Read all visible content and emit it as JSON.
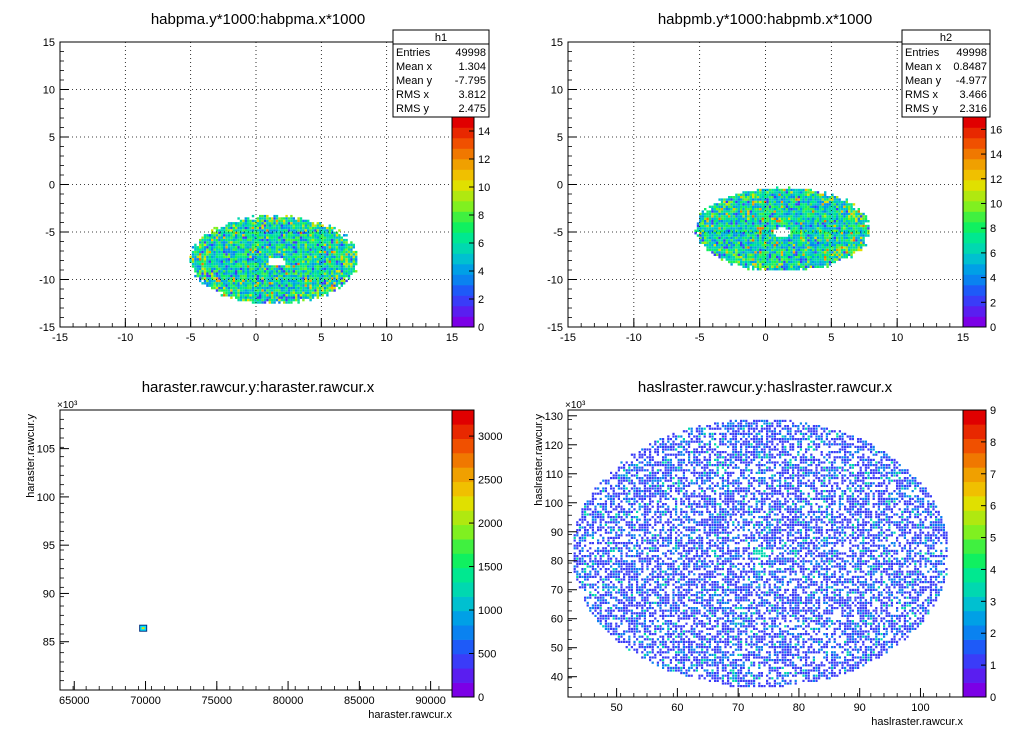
{
  "colorscale": [
    "#7b00e6",
    "#5a1ef0",
    "#3a3cf8",
    "#1e5af8",
    "#0a82f0",
    "#00a0e6",
    "#00c0d0",
    "#00d8b0",
    "#00e890",
    "#10f060",
    "#40f040",
    "#80f020",
    "#b0e810",
    "#e0e000",
    "#f0c000",
    "#f0a000",
    "#f07800",
    "#f05000",
    "#e82800",
    "#e00000"
  ],
  "chart_data": [
    {
      "type": "heatmap",
      "title": "habpma.y*1000:habpma.x*1000",
      "xlabel": "",
      "ylabel": "",
      "xlim": [
        -15,
        15
      ],
      "ylim": [
        -15,
        15
      ],
      "xticks": [
        "-15",
        "-10",
        "-5",
        "0",
        "5",
        "10",
        "15"
      ],
      "yticks": [
        "-15",
        "-10",
        "-5",
        "0",
        "5",
        "10",
        "15"
      ],
      "zticks": [
        "0",
        "2",
        "4",
        "6",
        "8",
        "10",
        "12",
        "14"
      ],
      "zmax": 15,
      "grid": true,
      "stats": {
        "name": "h1",
        "rows": [
          {
            "label": "Entries",
            "value": "49998"
          },
          {
            "label": "Mean x",
            "value": "1.304"
          },
          {
            "label": "Mean y",
            "value": "-7.795"
          },
          {
            "label": "RMS x",
            "value": "3.812"
          },
          {
            "label": "RMS y",
            "value": "2.475"
          }
        ]
      },
      "blob": {
        "cx": 1.304,
        "cy": -7.795,
        "rx": 6.4,
        "ry": 4.6,
        "hole_x": 1.5,
        "hole_y": -8.0
      }
    },
    {
      "type": "heatmap",
      "title": "habpmb.y*1000:habpmb.x*1000",
      "xlabel": "",
      "ylabel": "",
      "xlim": [
        -15,
        15
      ],
      "ylim": [
        -15,
        15
      ],
      "xticks": [
        "-15",
        "-10",
        "-5",
        "0",
        "5",
        "10",
        "15"
      ],
      "yticks": [
        "-15",
        "-10",
        "-5",
        "0",
        "5",
        "10",
        "15"
      ],
      "zticks": [
        "0",
        "2",
        "4",
        "6",
        "8",
        "10",
        "12",
        "14",
        "16"
      ],
      "zmax": 17,
      "grid": true,
      "stats": {
        "name": "h2",
        "rows": [
          {
            "label": "Entries",
            "value": "49998"
          },
          {
            "label": "Mean x",
            "value": "0.8487"
          },
          {
            "label": "Mean y",
            "value": "-4.977"
          },
          {
            "label": "RMS x",
            "value": "3.466"
          },
          {
            "label": "RMS y",
            "value": "2.316"
          }
        ]
      },
      "blob": {
        "cx": 1.2,
        "cy": -4.6,
        "rx": 6.6,
        "ry": 4.4,
        "hole_x": 1.2,
        "hole_y": -4.9
      }
    },
    {
      "type": "heatmap",
      "title": "haraster.rawcur.y:haraster.rawcur.x",
      "xlabel": "haraster.rawcur.x",
      "ylabel": "haraster.rawcur.y",
      "xlim": [
        64000,
        91500
      ],
      "ylim": [
        80000,
        109000
      ],
      "xticks": [
        "65000",
        "70000",
        "75000",
        "80000",
        "85000",
        "90000"
      ],
      "yticks": [
        "85",
        "90",
        "95",
        "100",
        "105"
      ],
      "yexp": "×10³",
      "zticks": [
        "0",
        "500",
        "1000",
        "1500",
        "2000",
        "2500",
        "3000"
      ],
      "zmax": 3300,
      "grid": false,
      "spot": {
        "x": 69800,
        "y": 86400
      }
    },
    {
      "type": "heatmap",
      "title": "haslraster.rawcur.y:haslraster.rawcur.x",
      "xlabel": "haslraster.rawcur.x",
      "ylabel": "haslraster.rawcur.y",
      "xlim": [
        42,
        107
      ],
      "ylim": [
        33,
        132
      ],
      "xticks": [
        "50",
        "60",
        "70",
        "80",
        "90",
        "100"
      ],
      "yticks": [
        "40",
        "50",
        "60",
        "70",
        "80",
        "90",
        "100",
        "110",
        "120",
        "130"
      ],
      "yexp": "×10³",
      "zticks": [
        "0",
        "1",
        "2",
        "3",
        "4",
        "5",
        "6",
        "7",
        "8",
        "9"
      ],
      "zmax": 9,
      "grid": false,
      "ellipse": {
        "cx": 73.5,
        "cy": 83,
        "rx": 31,
        "ry": 46.5
      }
    }
  ]
}
